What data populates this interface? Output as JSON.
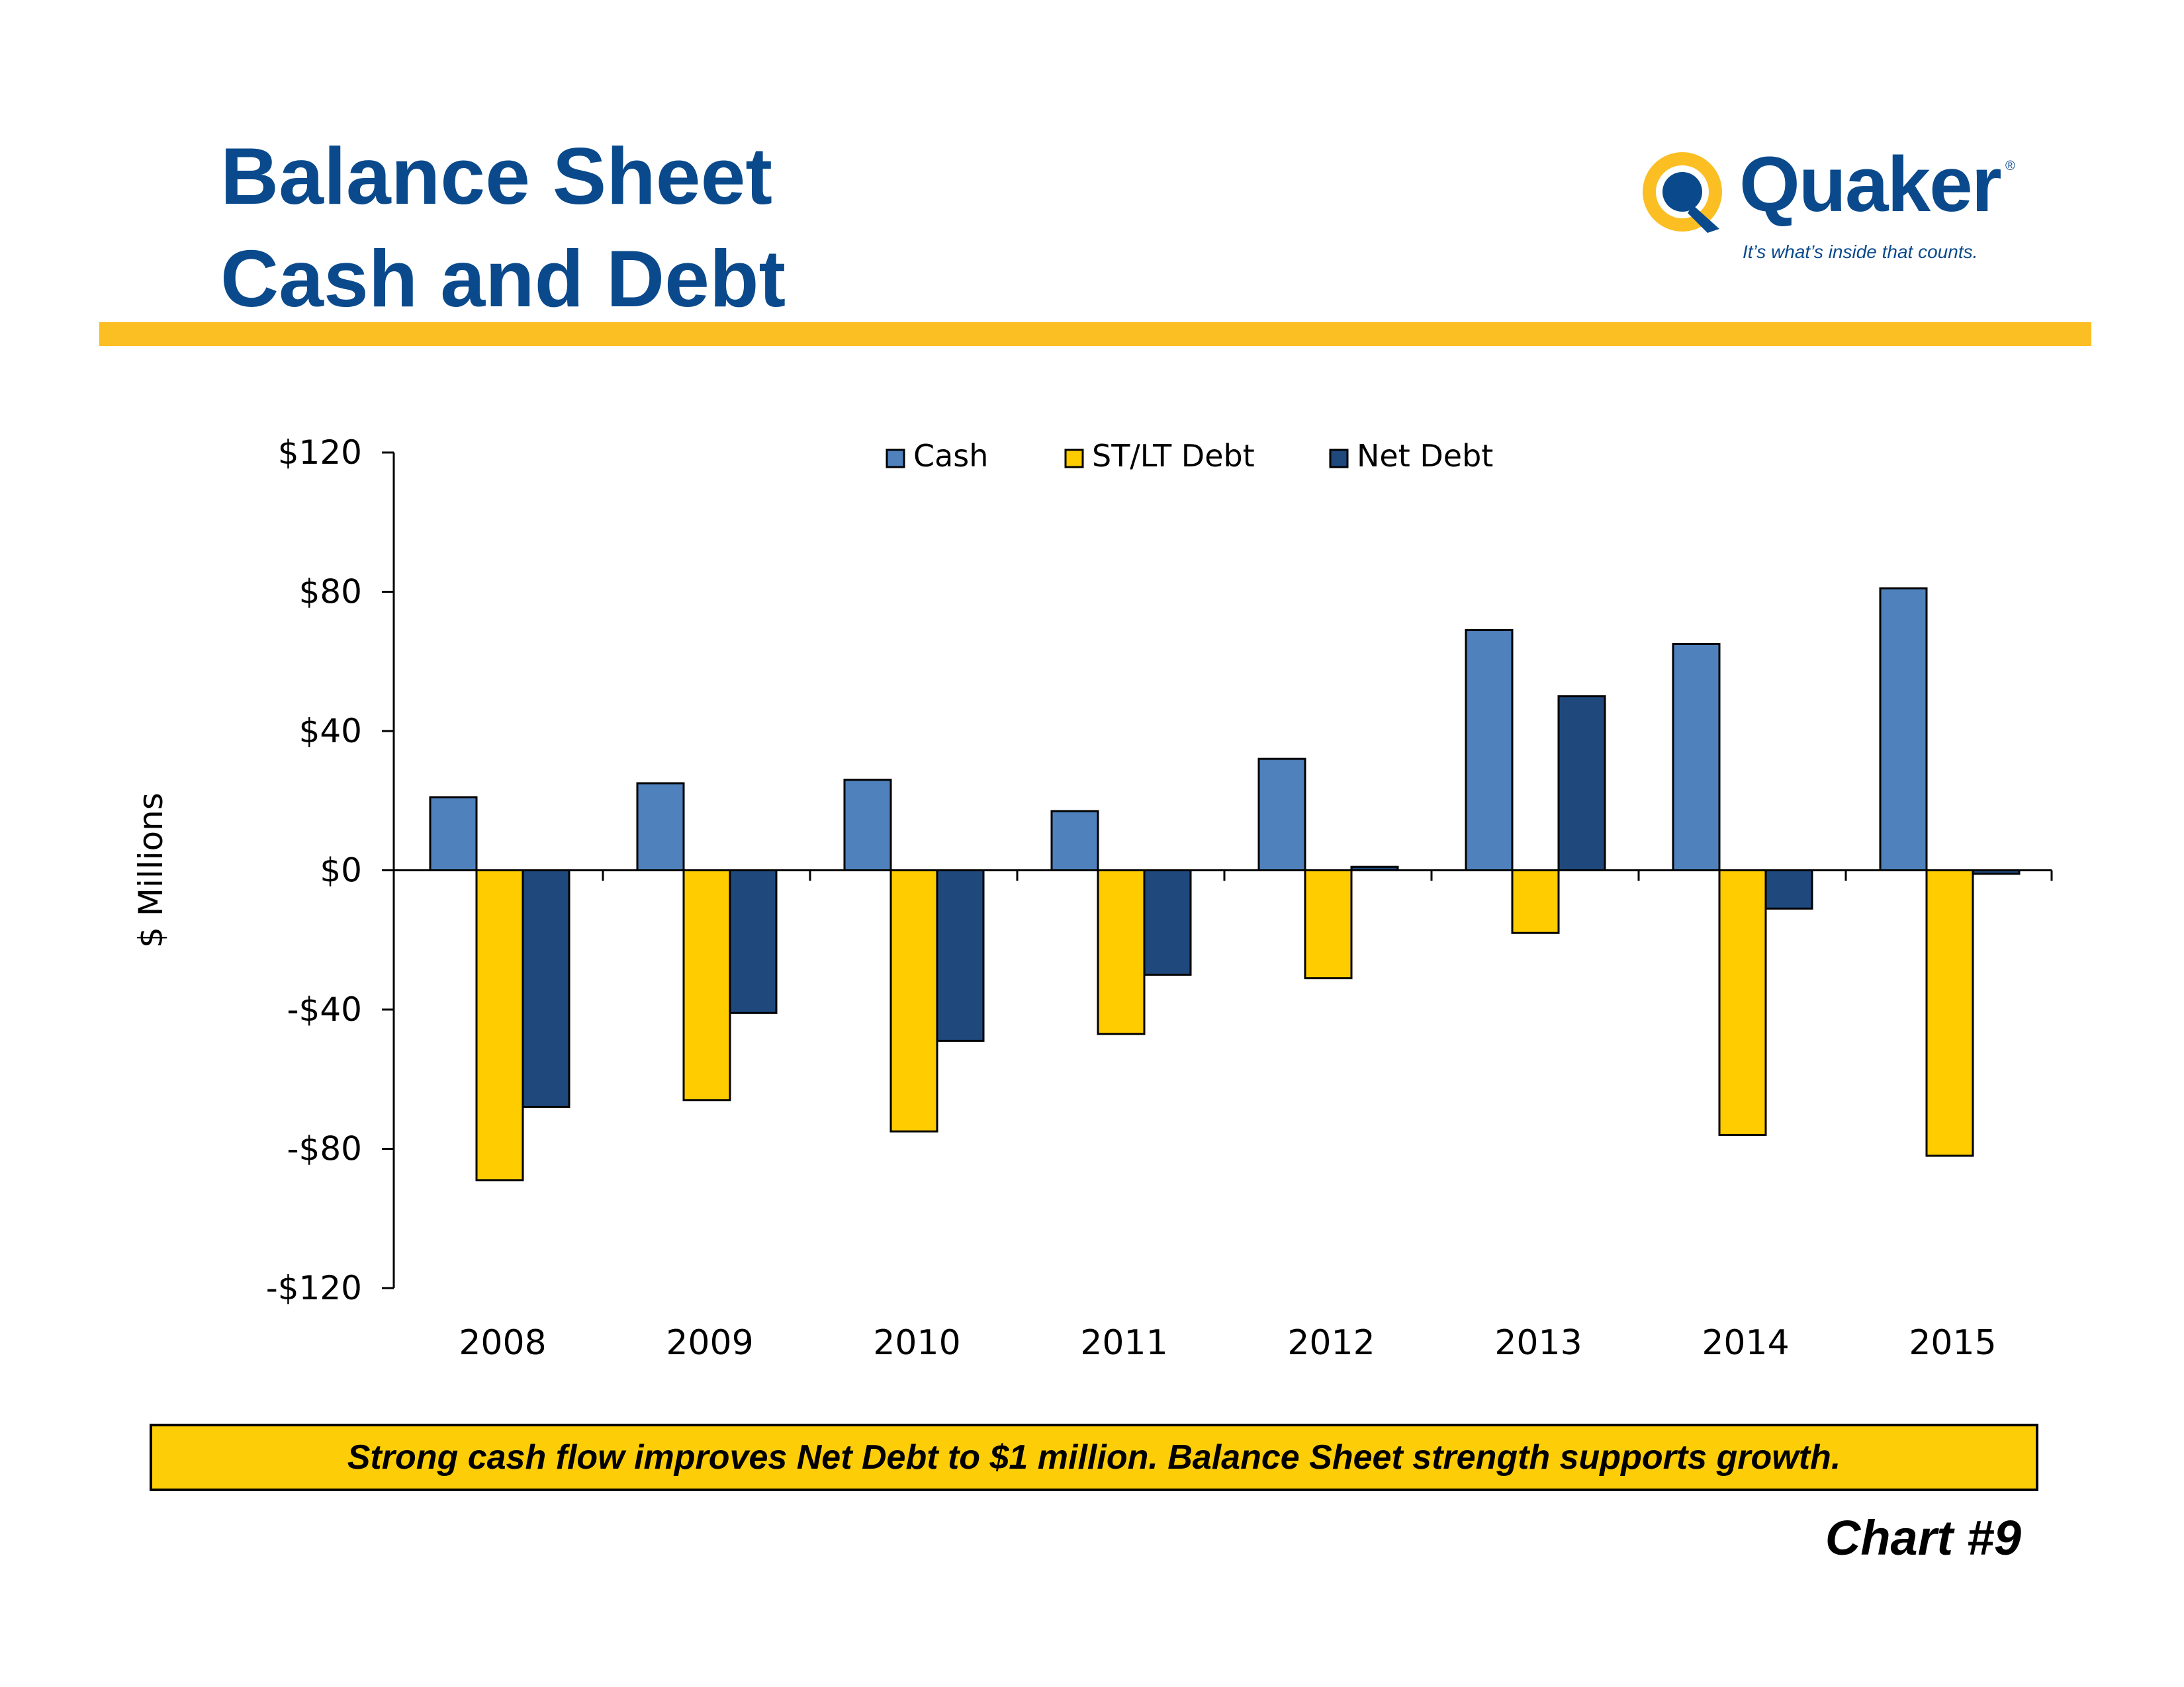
{
  "header": {
    "title_line1": "Balance Sheet",
    "title_line2": "Cash and Debt"
  },
  "logo": {
    "name": "Quaker",
    "tagline": "It’s what’s inside that counts.",
    "registered_mark": "®",
    "colors": {
      "ring": "#fbbf24",
      "wordmark": "#0a4a8c"
    }
  },
  "callout": "Strong cash flow improves Net Debt to $1 million.  Balance Sheet strength supports growth.",
  "chart_number": "Chart #9",
  "colors": {
    "accent_rule": "#fbbf24",
    "title": "#0a4a8c",
    "callout_bg": "#fdcd08"
  },
  "chart_data": {
    "type": "bar",
    "title": "",
    "xlabel": "",
    "ylabel": "$ Millions",
    "categories": [
      "2008",
      "2009",
      "2010",
      "2011",
      "2012",
      "2013",
      "2014",
      "2015"
    ],
    "series": [
      {
        "name": "Cash",
        "color": "#4f81bd",
        "values": [
          21,
          25,
          26,
          17,
          32,
          69,
          65,
          81
        ]
      },
      {
        "name": "ST/LT Debt",
        "color": "#ffcc00",
        "values": [
          -89,
          -66,
          -75,
          -47,
          -31,
          -18,
          -76,
          -82
        ]
      },
      {
        "name": "Net Debt",
        "color": "#1f497d",
        "values": [
          -68,
          -41,
          -49,
          -30,
          1,
          50,
          -11,
          -1
        ]
      }
    ],
    "ylim": [
      -120,
      120
    ],
    "yticks": [
      120,
      80,
      40,
      0,
      -40,
      -80,
      -120
    ],
    "ytick_labels": [
      "$120",
      "$80",
      "$40",
      "$0",
      "-$40",
      "-$80",
      "-$120"
    ],
    "legend_position": "top-center",
    "grid": false
  }
}
